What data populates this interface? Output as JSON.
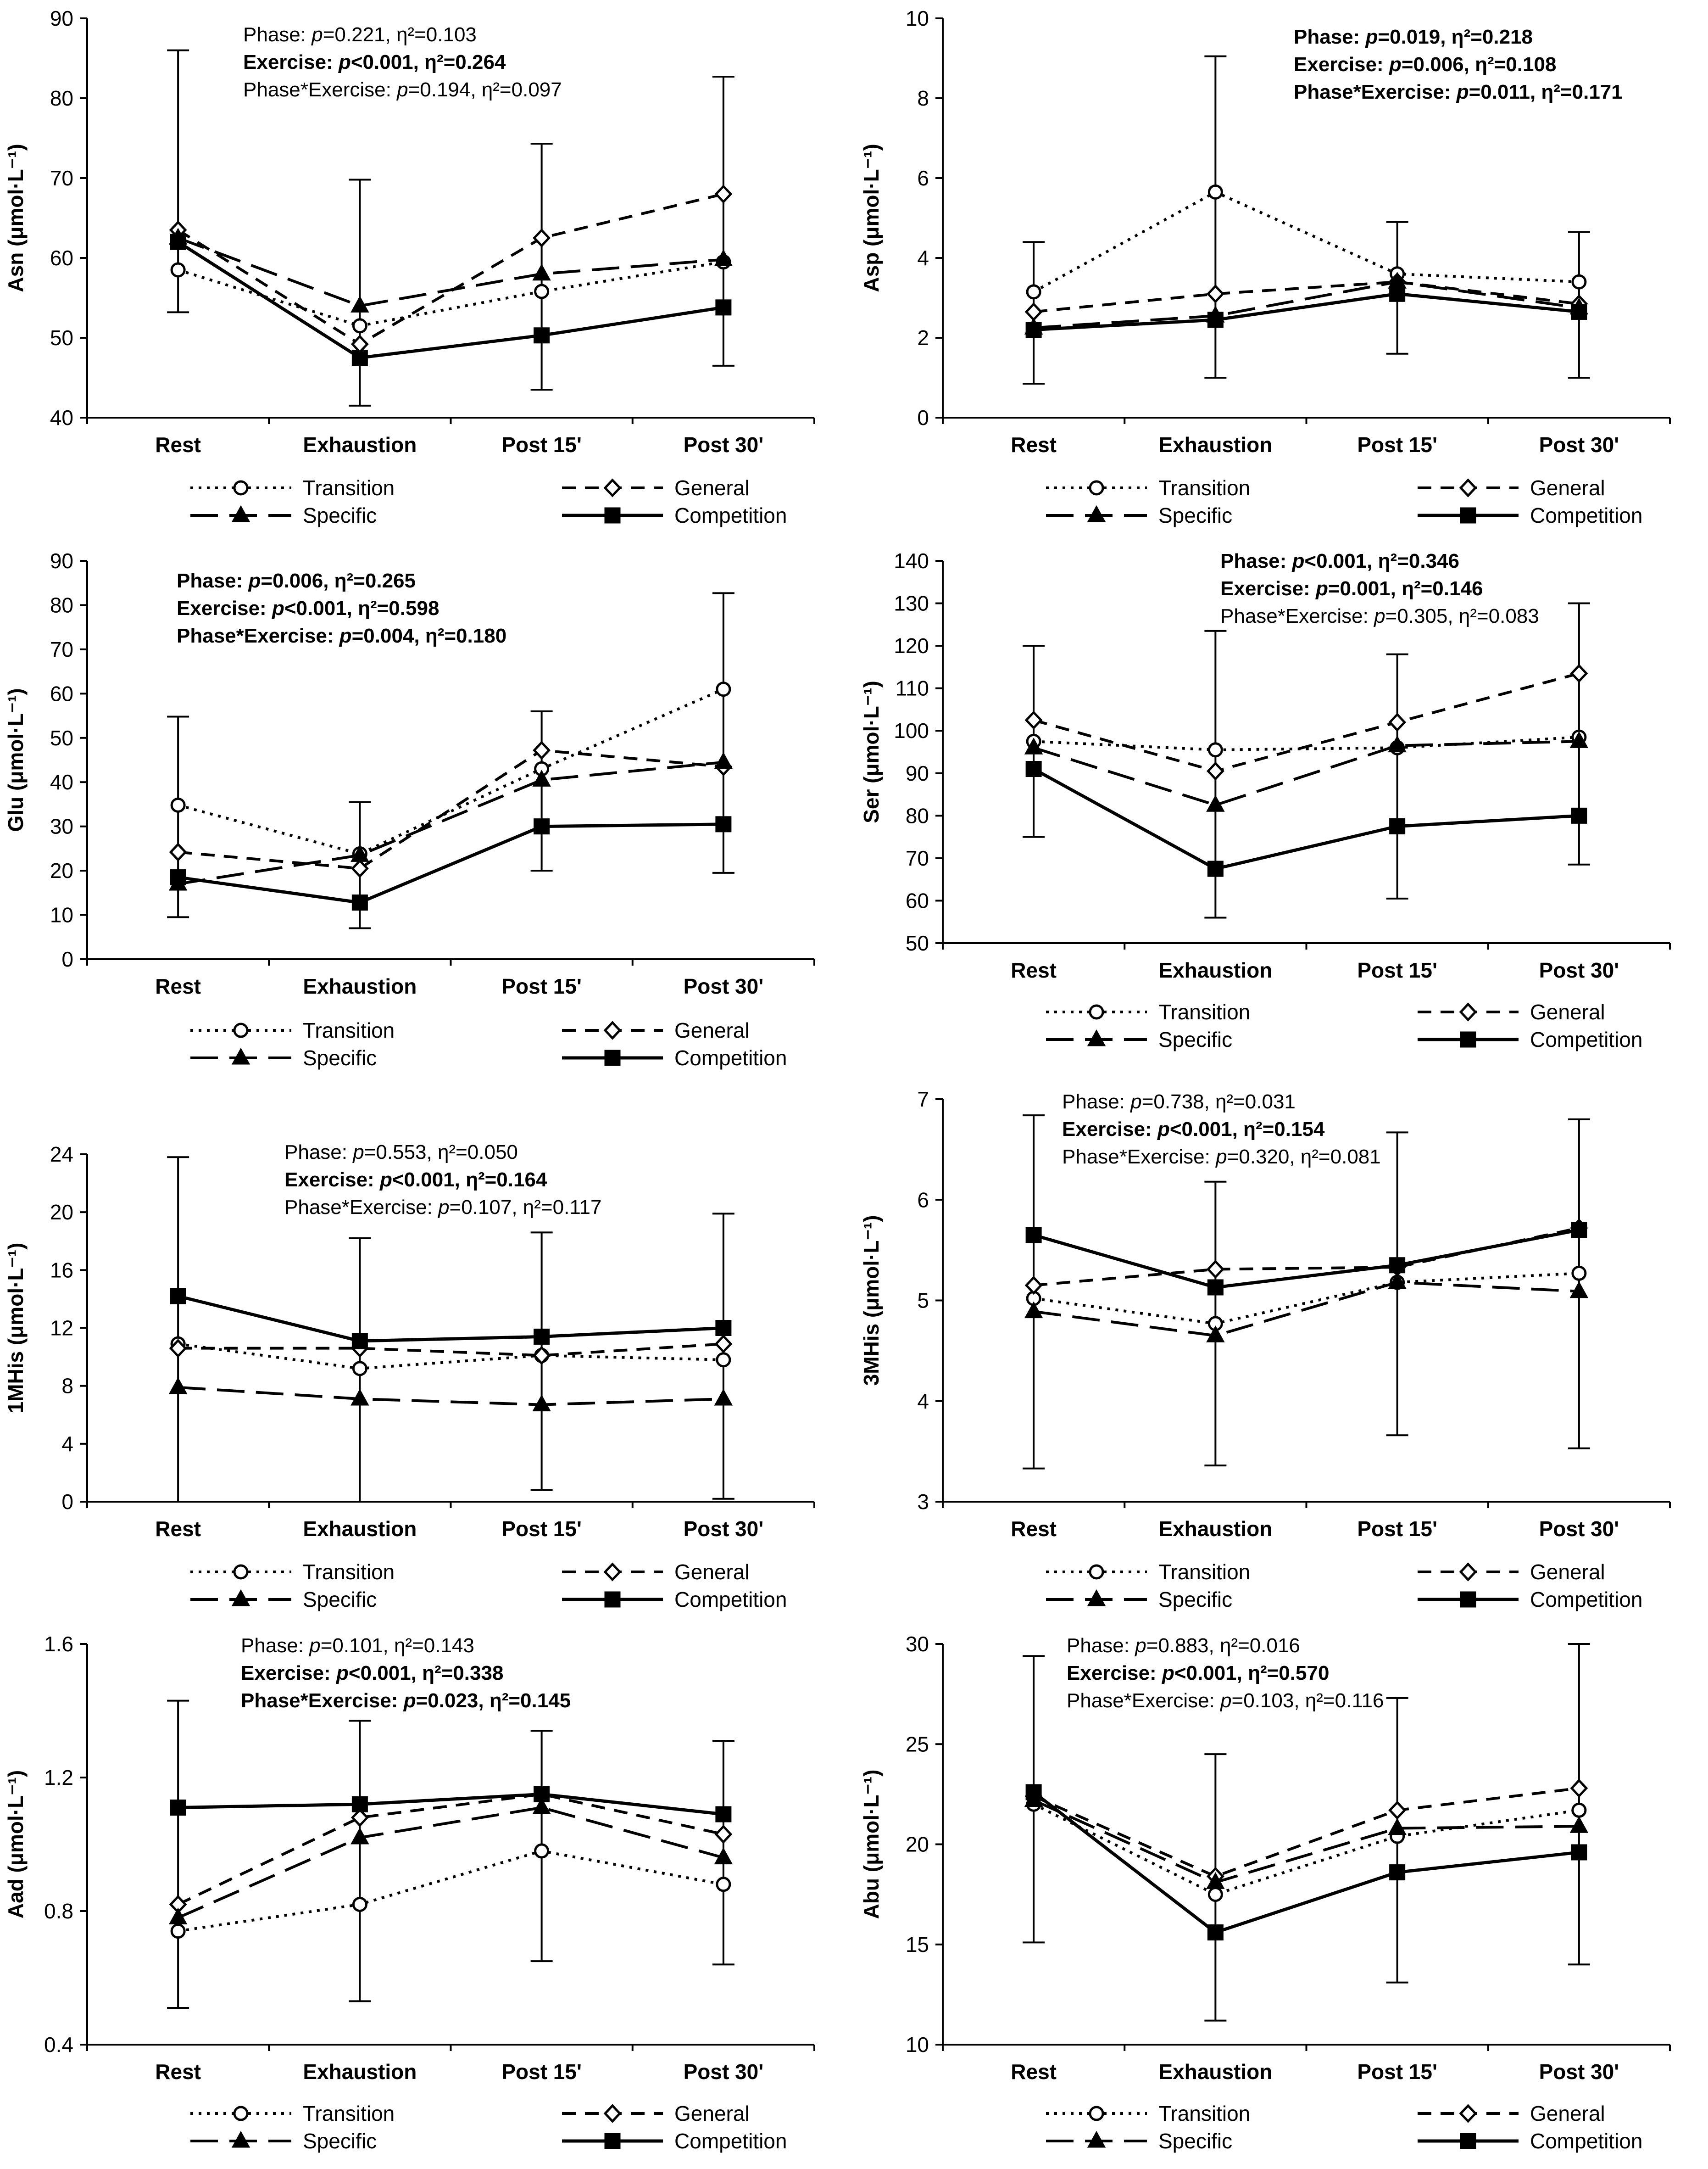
{
  "chart_data": [
    {
      "type": "line",
      "panel": "Asn",
      "ylabel": "Asn (μmol·L⁻¹)",
      "ylim": [
        40,
        90
      ],
      "yticks": [
        40,
        50,
        60,
        70,
        80,
        90
      ],
      "categories": [
        "Rest",
        "Exhaustion",
        "Post 15'",
        "Post 30'"
      ],
      "series": [
        {
          "name": "Transition",
          "values": [
            58.5,
            51.5,
            55.8,
            59.5
          ]
        },
        {
          "name": "General",
          "values": [
            63.5,
            49.2,
            62.5,
            68.0
          ]
        },
        {
          "name": "Specific",
          "values": [
            62.5,
            54.0,
            58.0,
            59.8
          ]
        },
        {
          "name": "Competition",
          "values": [
            62.0,
            47.5,
            50.3,
            53.8
          ]
        }
      ],
      "errorbars": {
        "lower": [
          53.2,
          41.5,
          43.5,
          46.5
        ],
        "upper": [
          86.0,
          69.8,
          74.3,
          82.7
        ]
      },
      "stats": [
        {
          "label": "Phase: ",
          "p": "p",
          "rest": "=0.221, η²=0.103",
          "bold": false
        },
        {
          "label": "Exercise: ",
          "p": "p",
          "rest": "<0.001, η²=0.264",
          "bold": true
        },
        {
          "label": "Phase*Exercise: ",
          "p": "p",
          "rest": "=0.194, η²=0.097",
          "bold": false
        }
      ]
    },
    {
      "type": "line",
      "panel": "Asp",
      "ylabel": "Asp (μmol·L⁻¹)",
      "ylim": [
        0,
        10
      ],
      "yticks": [
        0,
        2,
        4,
        6,
        8,
        10
      ],
      "categories": [
        "Rest",
        "Exhaustion",
        "Post 15'",
        "Post 30'"
      ],
      "series": [
        {
          "name": "Transition",
          "values": [
            3.15,
            5.65,
            3.6,
            3.4
          ]
        },
        {
          "name": "General",
          "values": [
            2.65,
            3.1,
            3.4,
            2.85
          ]
        },
        {
          "name": "Specific",
          "values": [
            2.25,
            2.55,
            3.4,
            2.75
          ]
        },
        {
          "name": "Competition",
          "values": [
            2.2,
            2.45,
            3.1,
            2.65
          ]
        }
      ],
      "errorbars": {
        "lower": [
          0.85,
          1.0,
          1.6,
          1.0
        ],
        "upper": [
          4.4,
          9.05,
          4.9,
          4.65
        ]
      },
      "stats": [
        {
          "label": "Phase: ",
          "p": "p",
          "rest": "=0.019, η²=0.218",
          "bold": true
        },
        {
          "label": "Exercise: ",
          "p": "p",
          "rest": "=0.006, η²=0.108",
          "bold": true
        },
        {
          "label": "Phase*Exercise: ",
          "p": "p",
          "rest": "=0.011, η²=0.171",
          "bold": true
        }
      ]
    },
    {
      "type": "line",
      "panel": "Glu",
      "ylabel": "Glu (μmol·L⁻¹)",
      "ylim": [
        0,
        90
      ],
      "yticks": [
        0,
        10,
        20,
        30,
        40,
        50,
        60,
        70,
        80,
        90
      ],
      "categories": [
        "Rest",
        "Exhaustion",
        "Post 15'",
        "Post 30'"
      ],
      "series": [
        {
          "name": "Transition",
          "values": [
            34.8,
            23.8,
            43.0,
            61.0
          ]
        },
        {
          "name": "General",
          "values": [
            24.2,
            20.5,
            47.2,
            43.5
          ]
        },
        {
          "name": "Specific",
          "values": [
            17.0,
            23.5,
            40.5,
            44.5
          ]
        },
        {
          "name": "Competition",
          "values": [
            18.5,
            12.8,
            30.0,
            30.5
          ]
        }
      ],
      "errorbars": {
        "lower": [
          9.5,
          7.0,
          20.0,
          19.5
        ],
        "upper": [
          54.8,
          35.5,
          56.0,
          82.7
        ]
      },
      "stats": [
        {
          "label": "Phase: ",
          "p": "p",
          "rest": "=0.006, η²=0.265",
          "bold": true
        },
        {
          "label": "Exercise: ",
          "p": "p",
          "rest": "<0.001, η²=0.598",
          "bold": true
        },
        {
          "label": "Phase*Exercise: ",
          "p": "p",
          "rest": "=0.004, η²=0.180",
          "bold": true
        }
      ]
    },
    {
      "type": "line",
      "panel": "Ser",
      "ylabel": "Ser (μmol·L⁻¹)",
      "ylim": [
        50,
        140
      ],
      "yticks": [
        50,
        60,
        70,
        80,
        90,
        100,
        110,
        120,
        130,
        140
      ],
      "categories": [
        "Rest",
        "Exhaustion",
        "Post 15'",
        "Post 30'"
      ],
      "series": [
        {
          "name": "Transition",
          "values": [
            97.5,
            95.5,
            96.0,
            98.5
          ]
        },
        {
          "name": "General",
          "values": [
            102.5,
            90.5,
            102.0,
            113.5
          ]
        },
        {
          "name": "Specific",
          "values": [
            96.0,
            82.5,
            96.5,
            97.5
          ]
        },
        {
          "name": "Competition",
          "values": [
            91.0,
            67.5,
            77.5,
            80.0
          ]
        }
      ],
      "errorbars": {
        "lower": [
          75.0,
          56.0,
          60.5,
          68.5
        ],
        "upper": [
          120.0,
          123.5,
          118.0,
          130.0
        ]
      },
      "stats": [
        {
          "label": "Phase: ",
          "p": "p",
          "rest": "<0.001, η²=0.346",
          "bold": true
        },
        {
          "label": "Exercise: ",
          "p": "p",
          "rest": "=0.001, η²=0.146",
          "bold": true
        },
        {
          "label": "Phase*Exercise: ",
          "p": "p",
          "rest": "=0.305, η²=0.083",
          "bold": false
        }
      ]
    },
    {
      "type": "line",
      "panel": "1MHis",
      "ylabel": "1MHis (μmol·L⁻¹)",
      "ylim": [
        0,
        24
      ],
      "yticks": [
        0,
        4,
        8,
        12,
        16,
        20,
        24
      ],
      "categories": [
        "Rest",
        "Exhaustion",
        "Post 15'",
        "Post 30'"
      ],
      "series": [
        {
          "name": "Transition",
          "values": [
            10.9,
            9.2,
            10.1,
            9.8
          ]
        },
        {
          "name": "General",
          "values": [
            10.6,
            10.6,
            10.1,
            10.9
          ]
        },
        {
          "name": "Specific",
          "values": [
            7.9,
            7.1,
            6.7,
            7.1
          ]
        },
        {
          "name": "Competition",
          "values": [
            14.2,
            11.1,
            11.4,
            12.0
          ]
        }
      ],
      "errorbars": {
        "lower": [
          0.0,
          0.0,
          0.8,
          0.2
        ],
        "upper": [
          23.8,
          18.2,
          18.6,
          19.9
        ]
      },
      "stats": [
        {
          "label": "Phase: ",
          "p": "p",
          "rest": "=0.553, η²=0.050",
          "bold": false
        },
        {
          "label": "Exercise: ",
          "p": "p",
          "rest": "<0.001, η²=0.164",
          "bold": true
        },
        {
          "label": "Phase*Exercise: ",
          "p": "p",
          "rest": "=0.107, η²=0.117",
          "bold": false
        }
      ]
    },
    {
      "type": "line",
      "panel": "3MHis",
      "ylabel": "3MHis (μmol·L⁻¹)",
      "ylim": [
        3,
        7
      ],
      "yticks": [
        3,
        4,
        5,
        6,
        7
      ],
      "categories": [
        "Rest",
        "Exhaustion",
        "Post 15'",
        "Post 30'"
      ],
      "series": [
        {
          "name": "Transition",
          "values": [
            5.02,
            4.77,
            5.18,
            5.27
          ]
        },
        {
          "name": "General",
          "values": [
            5.15,
            5.31,
            5.33,
            5.72
          ]
        },
        {
          "name": "Specific",
          "values": [
            4.89,
            4.65,
            5.18,
            5.09
          ]
        },
        {
          "name": "Competition",
          "values": [
            5.65,
            5.13,
            5.35,
            5.7
          ]
        }
      ],
      "errorbars": {
        "lower": [
          3.33,
          3.36,
          3.66,
          3.53
        ],
        "upper": [
          6.84,
          6.18,
          6.67,
          6.8
        ]
      },
      "stats": [
        {
          "label": "Phase: ",
          "p": "p",
          "rest": "=0.738, η²=0.031",
          "bold": false
        },
        {
          "label": "Exercise: ",
          "p": "p",
          "rest": "<0.001, η²=0.154",
          "bold": true
        },
        {
          "label": "Phase*Exercise: ",
          "p": "p",
          "rest": "=0.320, η²=0.081",
          "bold": false
        }
      ]
    },
    {
      "type": "line",
      "panel": "Aad",
      "ylabel": "Aad (μmol·L⁻¹)",
      "ylim": [
        0.4,
        1.6
      ],
      "yticks": [
        "0.4",
        "0.8",
        "1.2",
        "1.6"
      ],
      "categories": [
        "Rest",
        "Exhaustion",
        "Post 15'",
        "Post 30'"
      ],
      "series": [
        {
          "name": "Transition",
          "values": [
            0.74,
            0.82,
            0.98,
            0.88
          ]
        },
        {
          "name": "General",
          "values": [
            0.82,
            1.08,
            1.15,
            1.03
          ]
        },
        {
          "name": "Specific",
          "values": [
            0.78,
            1.02,
            1.11,
            0.96
          ]
        },
        {
          "name": "Competition",
          "values": [
            1.11,
            1.12,
            1.15,
            1.09
          ]
        }
      ],
      "errorbars": {
        "lower": [
          0.51,
          0.53,
          0.65,
          0.64
        ],
        "upper": [
          1.43,
          1.37,
          1.34,
          1.31
        ]
      },
      "stats": [
        {
          "label": "Phase: ",
          "p": "p",
          "rest": "=0.101, η²=0.143",
          "bold": false
        },
        {
          "label": "Exercise: ",
          "p": "p",
          "rest": "<0.001, η²=0.338",
          "bold": true
        },
        {
          "label": "Phase*Exercise: ",
          "p": "p",
          "rest": "=0.023, η²=0.145",
          "bold": true
        }
      ]
    },
    {
      "type": "line",
      "panel": "Abu",
      "ylabel": "Abu (μmol·L⁻¹)",
      "ylim": [
        10,
        30
      ],
      "yticks": [
        10,
        15,
        20,
        25,
        30
      ],
      "categories": [
        "Rest",
        "Exhaustion",
        "Post 15'",
        "Post 30'"
      ],
      "series": [
        {
          "name": "Transition",
          "values": [
            22.0,
            17.5,
            20.4,
            21.7
          ]
        },
        {
          "name": "General",
          "values": [
            22.4,
            18.4,
            21.7,
            22.8
          ]
        },
        {
          "name": "Specific",
          "values": [
            22.2,
            18.1,
            20.8,
            20.9
          ]
        },
        {
          "name": "Competition",
          "values": [
            22.6,
            15.6,
            18.6,
            19.6
          ]
        }
      ],
      "errorbars": {
        "lower": [
          15.1,
          11.2,
          13.1,
          14.0
        ],
        "upper": [
          29.4,
          24.5,
          27.3,
          30.0
        ]
      },
      "stats": [
        {
          "label": "Phase: ",
          "p": "p",
          "rest": "=0.883, η²=0.016",
          "bold": false
        },
        {
          "label": "Exercise: ",
          "p": "p",
          "rest": "<0.001, η²=0.570",
          "bold": true
        },
        {
          "label": "Phase*Exercise: ",
          "p": "p",
          "rest": "=0.103, η²=0.116",
          "bold": false
        }
      ]
    }
  ],
  "legend": [
    "Transition",
    "General",
    "Specific",
    "Competition"
  ],
  "colors": {
    "line": "#000000",
    "background": "#ffffff",
    "marker_fill_open": "#ffffff"
  }
}
